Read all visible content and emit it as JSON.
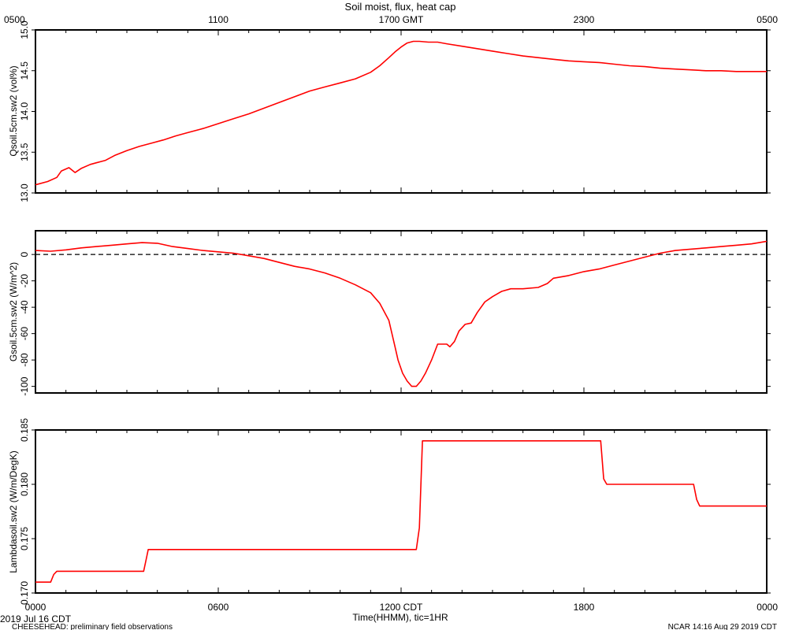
{
  "title": "Soil moist, flux, heat cap",
  "footer": {
    "start_date": "2019 Jul 16 CDT",
    "project": "CHEESEHEAD: preliminary field observations",
    "stamp": "NCAR 14:16 Aug 29 2019 CDT"
  },
  "series_color": "#ff0000",
  "chart_data": [
    {
      "type": "line",
      "ylabel": "Qsoil.5cm.sw2 (vol%)",
      "ylim": [
        13.0,
        15.0
      ],
      "yticks": [
        13.0,
        13.5,
        14.0,
        14.5,
        15.0
      ],
      "ytick_labels": [
        "13.0",
        "13.5",
        "14.0",
        "14.5",
        "15.0"
      ],
      "top_axis": {
        "xlim_hours": [
          0,
          24
        ],
        "ticks_hours": [
          0,
          6,
          12,
          18,
          24
        ],
        "tick_labels": [
          "0500",
          "1100",
          "1700 GMT",
          "2300",
          "0500"
        ]
      },
      "series": [
        {
          "x_hours": [
            0,
            0.4,
            0.7,
            0.85,
            1.1,
            1.3,
            1.5,
            1.8,
            2.0,
            2.3,
            2.6,
            3.0,
            3.4,
            3.8,
            4.2,
            4.6,
            5.0,
            5.5,
            6.0,
            6.5,
            7.0,
            7.5,
            8.0,
            8.5,
            9.0,
            9.5,
            10.0,
            10.5,
            11.0,
            11.3,
            11.6,
            11.8,
            12.0,
            12.2,
            12.4,
            12.6,
            12.9,
            13.2,
            13.5,
            14.0,
            14.5,
            15.0,
            15.5,
            16.0,
            16.5,
            17.0,
            17.5,
            18.0,
            18.5,
            19.0,
            19.5,
            20.0,
            20.5,
            21.0,
            21.5,
            22.0,
            22.5,
            23.0,
            23.5,
            24.0
          ],
          "y": [
            13.1,
            13.14,
            13.19,
            13.27,
            13.31,
            13.25,
            13.3,
            13.35,
            13.37,
            13.4,
            13.46,
            13.52,
            13.57,
            13.61,
            13.65,
            13.7,
            13.74,
            13.79,
            13.85,
            13.91,
            13.97,
            14.04,
            14.11,
            14.18,
            14.25,
            14.3,
            14.35,
            14.4,
            14.48,
            14.56,
            14.66,
            14.73,
            14.79,
            14.84,
            14.86,
            14.86,
            14.85,
            14.85,
            14.83,
            14.8,
            14.77,
            14.74,
            14.71,
            14.68,
            14.66,
            14.64,
            14.62,
            14.61,
            14.6,
            14.58,
            14.56,
            14.55,
            14.53,
            14.52,
            14.51,
            14.5,
            14.5,
            14.49,
            14.49,
            14.49
          ]
        }
      ]
    },
    {
      "type": "line",
      "ylabel": "Gsoil.5cm.sw2 (W/m^2)",
      "ylim": [
        -105,
        18
      ],
      "yticks": [
        -100,
        -80,
        -60,
        -40,
        -20,
        0
      ],
      "ytick_labels": [
        "-100",
        "-80",
        "-60",
        "-40",
        "-20",
        "0"
      ],
      "reference_line": {
        "y": 0,
        "style": "dashed"
      },
      "series": [
        {
          "x_hours": [
            0,
            0.5,
            1.0,
            1.5,
            2.0,
            2.5,
            3.0,
            3.5,
            4.0,
            4.5,
            5.0,
            5.5,
            6.0,
            6.5,
            7.0,
            7.5,
            8.0,
            8.5,
            9.0,
            9.5,
            10.0,
            10.5,
            11.0,
            11.3,
            11.6,
            11.8,
            11.9,
            12.05,
            12.2,
            12.35,
            12.5,
            12.65,
            12.8,
            13.0,
            13.2,
            13.35,
            13.5,
            13.6,
            13.75,
            13.9,
            14.1,
            14.3,
            14.5,
            14.75,
            15.0,
            15.3,
            15.6,
            16.0,
            16.5,
            16.8,
            17.0,
            17.5,
            18.0,
            18.5,
            19.0,
            19.5,
            20.0,
            20.5,
            21.0,
            21.5,
            22.0,
            22.5,
            23.0,
            23.5,
            24.0
          ],
          "y": [
            3,
            2.5,
            3.5,
            5,
            6,
            7,
            8,
            9,
            8.5,
            6,
            4.5,
            3,
            2,
            1,
            -1,
            -3,
            -6,
            -9,
            -11,
            -14,
            -18,
            -23,
            -29,
            -37,
            -50,
            -70,
            -80,
            -90,
            -96,
            -100,
            -100,
            -96,
            -90,
            -80,
            -68,
            -68,
            -68,
            -70,
            -66,
            -58,
            -53,
            -52,
            -44,
            -36,
            -32,
            -28,
            -26,
            -26,
            -25,
            -22,
            -18,
            -16,
            -13,
            -11,
            -8,
            -5,
            -2,
            1,
            3,
            4,
            5,
            6,
            7,
            8,
            10
          ]
        }
      ]
    },
    {
      "type": "line",
      "ylabel": "Lambdasoil.sw2 (W/m/DegK)",
      "ylim": [
        0.17,
        0.185
      ],
      "yticks": [
        0.17,
        0.175,
        0.18,
        0.185
      ],
      "ytick_labels": [
        "0.170",
        "0.175",
        "0.180",
        "0.185"
      ],
      "bottom_axis": {
        "xlim_hours": [
          0,
          24
        ],
        "ticks_hours": [
          0,
          6,
          12,
          18,
          24
        ],
        "tick_labels": [
          "0000",
          "0600",
          "1200 CDT",
          "1800",
          "0000"
        ],
        "xlabel": "Time(HHMM), tic=1HR"
      },
      "series": [
        {
          "x_hours": [
            0,
            0.5,
            0.6,
            0.7,
            3.55,
            3.65,
            3.7,
            12.5,
            12.6,
            12.7,
            18.55,
            18.65,
            18.75,
            21.6,
            21.7,
            21.8,
            24.0
          ],
          "y": [
            0.171,
            0.171,
            0.1717,
            0.172,
            0.172,
            0.1733,
            0.174,
            0.174,
            0.176,
            0.184,
            0.184,
            0.1805,
            0.18,
            0.18,
            0.1786,
            0.178,
            0.178
          ]
        }
      ]
    }
  ]
}
